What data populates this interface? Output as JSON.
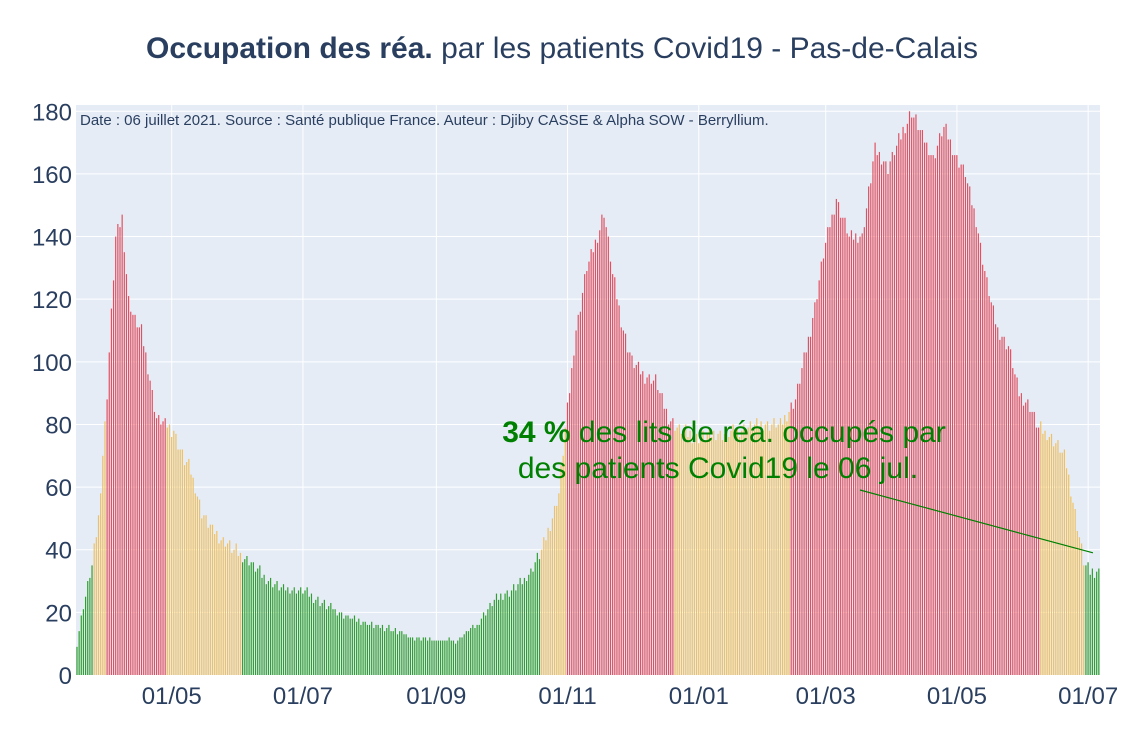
{
  "title": {
    "bold": "Occupation des réa.",
    "rest": " par les patients Covid19 - Pas-de-Calais"
  },
  "source_note": "Date : 06 juillet 2021. Source : Santé publique France. Auteur : Djiby CASSE & Alpha SOW - Berryllium.",
  "annotation": {
    "value": "34  %",
    "line1_rest": " des lits de réa. occupés par",
    "line2": "des patients Covid19 le 06 jul."
  },
  "colors": {
    "background": "#e5ecf6",
    "grid": "#ffffff",
    "title": "#2a3f5f",
    "green": "#2e9e2e",
    "orange": "#f0c060",
    "red": "#e05060",
    "annotation": "#008000"
  },
  "chart_data": {
    "type": "bar",
    "start_date": "2020-03-18",
    "end_date": "2021-07-06",
    "ylim": [
      0,
      182
    ],
    "yticks": [
      0,
      20,
      40,
      60,
      80,
      100,
      120,
      140,
      160,
      180
    ],
    "xticks": [
      {
        "date": "2020-05-01",
        "label": "01/05"
      },
      {
        "date": "2020-07-01",
        "label": "01/07"
      },
      {
        "date": "2020-09-01",
        "label": "01/09"
      },
      {
        "date": "2020-11-01",
        "label": "01/11"
      },
      {
        "date": "2021-01-01",
        "label": "01/01"
      },
      {
        "date": "2021-03-01",
        "label": "01/03"
      },
      {
        "date": "2021-05-01",
        "label": "01/05"
      },
      {
        "date": "2021-07-01",
        "label": "01/07"
      }
    ],
    "keypoints": [
      [
        "2020-03-18",
        10
      ],
      [
        "2020-03-21",
        22
      ],
      [
        "2020-03-25",
        35
      ],
      [
        "2020-03-28",
        50
      ],
      [
        "2020-04-01",
        90
      ],
      [
        "2020-04-05",
        140
      ],
      [
        "2020-04-08",
        146
      ],
      [
        "2020-04-11",
        120
      ],
      [
        "2020-04-14",
        113
      ],
      [
        "2020-04-17",
        110
      ],
      [
        "2020-04-20",
        98
      ],
      [
        "2020-04-24",
        82
      ],
      [
        "2020-04-28",
        80
      ],
      [
        "2020-05-02",
        78
      ],
      [
        "2020-05-06",
        70
      ],
      [
        "2020-05-10",
        65
      ],
      [
        "2020-05-15",
        52
      ],
      [
        "2020-05-20",
        46
      ],
      [
        "2020-05-25",
        43
      ],
      [
        "2020-05-30",
        40
      ],
      [
        "2020-06-05",
        37
      ],
      [
        "2020-06-12",
        32
      ],
      [
        "2020-06-20",
        28
      ],
      [
        "2020-07-01",
        27
      ],
      [
        "2020-07-10",
        23
      ],
      [
        "2020-07-20",
        19
      ],
      [
        "2020-08-01",
        16
      ],
      [
        "2020-08-10",
        15
      ],
      [
        "2020-08-20",
        12
      ],
      [
        "2020-09-01",
        11
      ],
      [
        "2020-09-10",
        11
      ],
      [
        "2020-09-20",
        16
      ],
      [
        "2020-09-28",
        24
      ],
      [
        "2020-10-06",
        27
      ],
      [
        "2020-10-14",
        32
      ],
      [
        "2020-10-20",
        40
      ],
      [
        "2020-10-24",
        48
      ],
      [
        "2020-10-28",
        58
      ],
      [
        "2020-11-01",
        85
      ],
      [
        "2020-11-05",
        110
      ],
      [
        "2020-11-10",
        130
      ],
      [
        "2020-11-15",
        140
      ],
      [
        "2020-11-18",
        148
      ],
      [
        "2020-11-22",
        128
      ],
      [
        "2020-11-27",
        110
      ],
      [
        "2020-12-01",
        100
      ],
      [
        "2020-12-06",
        96
      ],
      [
        "2020-12-12",
        94
      ],
      [
        "2020-12-18",
        82
      ],
      [
        "2020-12-24",
        78
      ],
      [
        "2020-12-31",
        76
      ],
      [
        "2021-01-10",
        77
      ],
      [
        "2021-01-20",
        78
      ],
      [
        "2021-01-31",
        80
      ],
      [
        "2021-02-08",
        80
      ],
      [
        "2021-02-15",
        88
      ],
      [
        "2021-02-22",
        110
      ],
      [
        "2021-03-01",
        138
      ],
      [
        "2021-03-06",
        152
      ],
      [
        "2021-03-12",
        140
      ],
      [
        "2021-03-18",
        140
      ],
      [
        "2021-03-24",
        168
      ],
      [
        "2021-03-30",
        162
      ],
      [
        "2021-04-05",
        172
      ],
      [
        "2021-04-10",
        180
      ],
      [
        "2021-04-15",
        172
      ],
      [
        "2021-04-20",
        165
      ],
      [
        "2021-04-25",
        175
      ],
      [
        "2021-05-01",
        165
      ],
      [
        "2021-05-05",
        160
      ],
      [
        "2021-05-10",
        145
      ],
      [
        "2021-05-15",
        125
      ],
      [
        "2021-05-20",
        110
      ],
      [
        "2021-05-25",
        105
      ],
      [
        "2021-05-30",
        90
      ],
      [
        "2021-06-04",
        86
      ],
      [
        "2021-06-08",
        79
      ],
      [
        "2021-06-14",
        76
      ],
      [
        "2021-06-20",
        70
      ],
      [
        "2021-06-25",
        52
      ],
      [
        "2021-06-29",
        36
      ],
      [
        "2021-07-02",
        33
      ],
      [
        "2021-07-06",
        33
      ]
    ],
    "colors_note": "bars colored by occupancy level",
    "annotation_point": {
      "date": "2021-07-06",
      "value": 39
    }
  }
}
